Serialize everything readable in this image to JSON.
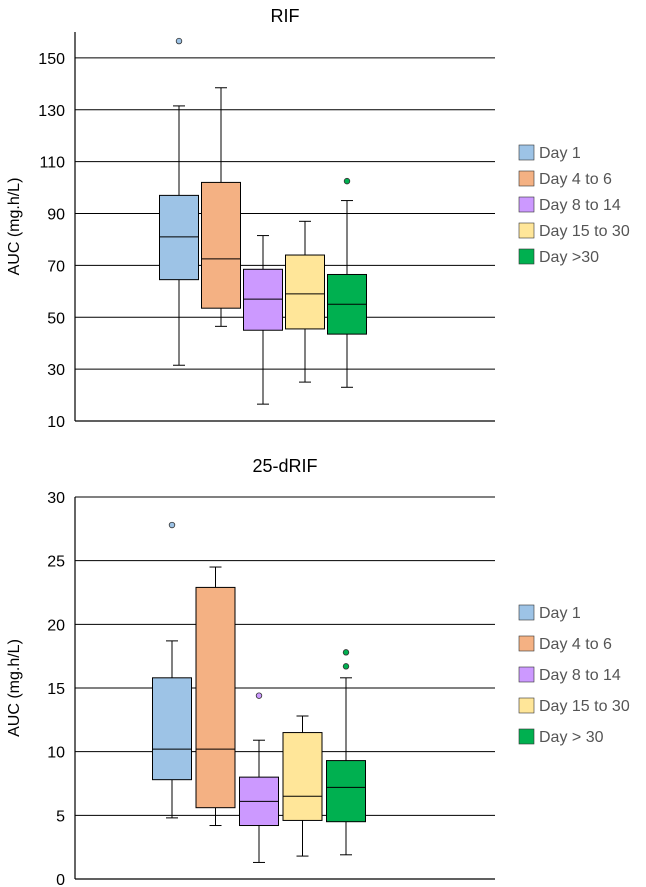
{
  "chart_data": [
    {
      "type": "boxplot",
      "title": "RIF",
      "ylabel": "AUC (mg.h/L)",
      "ylim": [
        10,
        160
      ],
      "yticks": [
        10,
        30,
        50,
        70,
        90,
        110,
        130,
        150
      ],
      "grid": true,
      "legend_position": "right",
      "series": [
        {
          "name": "Day 1",
          "color": "#9DC3E6",
          "min": 31.5,
          "q1": 64.5,
          "median": 81,
          "q3": 97,
          "max": 131.5,
          "outliers": [
            156.5
          ]
        },
        {
          "name": "Day 4 to 6",
          "color": "#F4B183",
          "min": 46.5,
          "q1": 53.5,
          "median": 72.5,
          "q3": 102,
          "max": 138.5,
          "outliers": []
        },
        {
          "name": "Day 8 to 14",
          "color": "#CC99FF",
          "min": 16.5,
          "q1": 45,
          "median": 57,
          "q3": 68.5,
          "max": 81.5,
          "outliers": []
        },
        {
          "name": "Day 15 to 30",
          "color": "#FFE699",
          "min": 25,
          "q1": 45.5,
          "median": 59,
          "q3": 74,
          "max": 87,
          "outliers": []
        },
        {
          "name": "Day >30",
          "color": "#00B050",
          "min": 23,
          "q1": 43.5,
          "median": 55,
          "q3": 66.5,
          "max": 95,
          "outliers": [
            102.5
          ]
        }
      ]
    },
    {
      "type": "boxplot",
      "title": "25-dRIF",
      "ylabel": "AUC (mg.h/L)",
      "ylim": [
        0,
        30
      ],
      "yticks": [
        0,
        5,
        10,
        15,
        20,
        25,
        30
      ],
      "grid": true,
      "legend_position": "right",
      "series": [
        {
          "name": "Day 1",
          "color": "#9DC3E6",
          "min": 4.8,
          "q1": 7.8,
          "median": 10.2,
          "q3": 15.8,
          "max": 18.7,
          "outliers": [
            27.8
          ]
        },
        {
          "name": "Day 4 to 6",
          "color": "#F4B183",
          "min": 4.2,
          "q1": 5.6,
          "median": 10.2,
          "q3": 22.9,
          "max": 24.5,
          "outliers": []
        },
        {
          "name": "Day 8 to 14",
          "color": "#CC99FF",
          "min": 1.3,
          "q1": 4.2,
          "median": 6.1,
          "q3": 8,
          "max": 10.9,
          "outliers": [
            14.4
          ]
        },
        {
          "name": "Day 15 to 30",
          "color": "#FFE699",
          "min": 1.8,
          "q1": 4.6,
          "median": 6.5,
          "q3": 11.5,
          "max": 12.8,
          "outliers": []
        },
        {
          "name": "Day > 30",
          "color": "#00B050",
          "min": 1.9,
          "q1": 4.5,
          "median": 7.2,
          "q3": 9.3,
          "max": 15.8,
          "outliers": [
            16.7,
            17.8
          ]
        }
      ]
    }
  ]
}
